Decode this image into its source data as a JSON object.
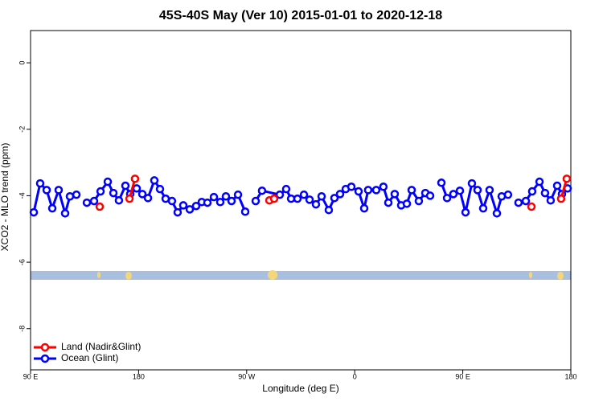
{
  "chart_data": {
    "type": "line",
    "title": "45S-40S May (Ver 10)   2015-01-01 to 2020-12-18",
    "x_label": "Longitude (deg E)",
    "y_label": "XCO2 - MLO trend (ppm)",
    "xlim": [
      90,
      540
    ],
    "xticks": [
      {
        "value": 90,
        "label": "90 E"
      },
      180,
      {
        "value": 270,
        "label": "90 W"
      },
      {
        "value": 360,
        "label": "0"
      },
      {
        "value": 450,
        "label": "90 E"
      },
      {
        "value": 540,
        "label": "180"
      }
    ],
    "ylim": [
      -9.24,
      0.97
    ],
    "yticks": [
      0,
      -2,
      -4,
      -6,
      -8
    ],
    "legend": "bottom-left",
    "series": [
      {
        "name": "Land (Nadir&Glint)",
        "color": "#ff0000",
        "x": [
          147.6,
          null,
          172.4,
          177.0,
          null,
          288.9,
          292.9,
          null,
          507.2,
          null,
          531.9,
          536.6
        ],
        "values": [
          -4.33,
          null,
          -4.09,
          -3.49,
          null,
          -4.14,
          -4.09,
          null,
          -4.33,
          null,
          -4.09,
          -3.49
        ]
      },
      {
        "name": "Ocean (Glint)",
        "color": "#0000ff",
        "x": [
          92.7,
          98.0,
          103.4,
          108.1,
          113.4,
          118.8,
          122.8,
          128.2,
          null,
          136.9,
          142.9,
          148.3,
          154.3,
          159.0,
          163.6,
          169.0,
          173.0,
          178.4,
          183.1,
          187.8,
          193.1,
          197.8,
          202.5,
          207.8,
          212.5,
          217.2,
          222.6,
          227.9,
          232.6,
          237.3,
          242.7,
          248.0,
          252.7,
          257.4,
          262.8,
          268.8,
          null,
          277.5,
          282.8,
          297.6,
          302.9,
          307.0,
          312.3,
          317.7,
          322.4,
          327.7,
          332.4,
          338.4,
          343.1,
          347.8,
          352.5,
          357.2,
          363.2,
          367.9,
          371.2,
          377.9,
          383.9,
          388.0,
          393.3,
          398.7,
          403.4,
          407.4,
          413.4,
          418.8,
          422.8,
          null,
          432.2,
          436.9,
          442.2,
          447.6,
          452.3,
          457.6,
          462.3,
          467.0,
          472.3,
          478.4,
          482.4,
          487.7,
          null,
          496.4,
          502.5,
          507.8,
          513.9,
          518.5,
          523.2,
          528.6,
          532.6,
          537.3
        ],
        "values": [
          -4.5,
          -3.63,
          -3.83,
          -4.38,
          -3.83,
          -4.53,
          -4.02,
          -3.97,
          null,
          -4.21,
          -4.16,
          -3.87,
          -3.58,
          -3.92,
          -4.14,
          -3.7,
          -3.95,
          -3.78,
          -3.95,
          -4.07,
          -3.54,
          -3.8,
          -4.09,
          -4.16,
          -4.5,
          -4.29,
          -4.41,
          -4.31,
          -4.19,
          -4.21,
          -4.04,
          -4.19,
          -4.02,
          -4.16,
          -3.97,
          -4.48,
          null,
          -4.16,
          -3.85,
          -3.97,
          -3.8,
          -4.09,
          -4.09,
          -3.97,
          -4.12,
          -4.26,
          -4.02,
          -4.43,
          -4.07,
          -3.95,
          -3.8,
          -3.73,
          -3.87,
          -4.38,
          -3.83,
          -3.83,
          -3.73,
          -4.21,
          -3.95,
          -4.29,
          -4.24,
          -3.83,
          -4.16,
          -3.92,
          -4.0,
          null,
          -3.61,
          -4.07,
          -3.95,
          -3.85,
          -4.5,
          -3.63,
          -3.83,
          -4.38,
          -3.83,
          -4.53,
          -4.02,
          -3.97,
          null,
          -4.21,
          -4.16,
          -3.87,
          -3.58,
          -3.92,
          -4.14,
          -3.7,
          -3.95,
          -3.78
        ]
      }
    ]
  }
}
